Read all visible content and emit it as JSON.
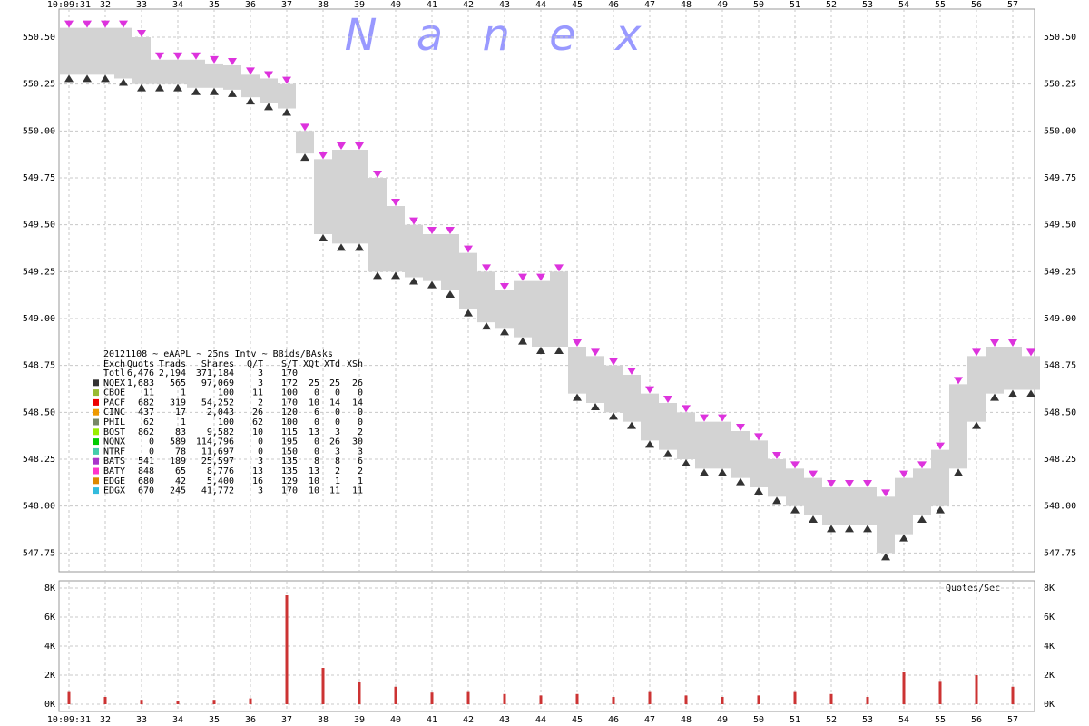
{
  "chart_data": [
    {
      "type": "band",
      "annotation": "N a n e x",
      "x": [
        31,
        31.5,
        32,
        32.5,
        33,
        33.5,
        34,
        34.5,
        35,
        35.5,
        36,
        36.5,
        37,
        37.5,
        38,
        38.5,
        39,
        39.5,
        40,
        40.5,
        41,
        41.5,
        42,
        42.5,
        43,
        43.5,
        44,
        44.5,
        45,
        45.5,
        46,
        46.5,
        47,
        47.5,
        48,
        48.5,
        49,
        49.5,
        50,
        50.5,
        51,
        51.5,
        52,
        52.5,
        53,
        53.5,
        54,
        54.5,
        55,
        55.5,
        56,
        56.5,
        57,
        57.5
      ],
      "series": [
        {
          "color": "#dd33dd",
          "values": [
            550.55,
            550.55,
            550.55,
            550.55,
            550.5,
            550.38,
            550.38,
            550.38,
            550.36,
            550.35,
            550.3,
            550.28,
            550.25,
            550.0,
            549.85,
            549.9,
            549.9,
            549.75,
            549.6,
            549.5,
            549.45,
            549.45,
            549.35,
            549.25,
            549.15,
            549.2,
            549.2,
            549.25,
            548.85,
            548.8,
            548.75,
            548.7,
            548.6,
            548.55,
            548.5,
            548.45,
            548.45,
            548.4,
            548.35,
            548.25,
            548.2,
            548.15,
            548.1,
            548.1,
            548.1,
            548.05,
            548.15,
            548.2,
            548.3,
            548.65,
            548.8,
            548.85,
            548.85,
            548.8
          ]
        },
        {
          "color": "#333333",
          "values": [
            550.3,
            550.3,
            550.3,
            550.28,
            550.25,
            550.25,
            550.25,
            550.23,
            550.23,
            550.22,
            550.18,
            550.15,
            550.12,
            549.88,
            549.45,
            549.4,
            549.4,
            549.25,
            549.25,
            549.22,
            549.2,
            549.15,
            549.05,
            548.98,
            548.95,
            548.9,
            548.85,
            548.85,
            548.6,
            548.55,
            548.5,
            548.45,
            548.35,
            548.3,
            548.25,
            548.2,
            548.2,
            548.15,
            548.1,
            548.05,
            548.0,
            547.95,
            547.9,
            547.9,
            547.9,
            547.75,
            547.85,
            547.95,
            548.0,
            548.2,
            548.45,
            548.6,
            548.62,
            548.62
          ]
        }
      ],
      "band_color": "#d3d3d3",
      "xlim": [
        30.725,
        57.6
      ],
      "xticks": [
        {
          "value": 31,
          "label": "10:09:31"
        },
        32,
        33,
        34,
        35,
        36,
        37,
        38,
        39,
        40,
        41,
        42,
        43,
        44,
        45,
        46,
        47,
        48,
        49,
        50,
        51,
        52,
        53,
        54,
        55,
        56,
        57
      ],
      "ylim": [
        547.65,
        550.65
      ],
      "yticks": [
        {
          "value": 547.75,
          "label": "547.75"
        },
        {
          "value": 548,
          "label": "548.00"
        },
        {
          "value": 548.25,
          "label": "548.25"
        },
        {
          "value": 548.5,
          "label": "548.50"
        },
        {
          "value": 548.75,
          "label": "548.75"
        },
        {
          "value": 549,
          "label": "549.00"
        },
        {
          "value": 549.25,
          "label": "549.25"
        },
        {
          "value": 549.5,
          "label": "549.50"
        },
        {
          "value": 549.75,
          "label": "549.75"
        },
        {
          "value": 550,
          "label": "550.00"
        },
        {
          "value": 550.25,
          "label": "550.25"
        },
        {
          "value": 550.5,
          "label": "550.50"
        }
      ],
      "grid": true,
      "stats_table": {
        "title": "20121108 ~ eAAPL ~ 25ms Intv ~ BBids/BAsks",
        "header": [
          "Exch",
          "Quots",
          "Trads",
          "Shares",
          "Q/T",
          "S/T",
          "XQt",
          "XTd",
          "XSh"
        ],
        "rows": [
          [
            "Totl",
            "6,476",
            "2,194",
            "371,184",
            "3",
            "170"
          ],
          [
            "NQEX",
            "1,683",
            "565",
            "97,069",
            "3",
            "172",
            "25",
            "25",
            "26"
          ],
          [
            "CBOE",
            "11",
            "1",
            "100",
            "11",
            "100",
            "0",
            "0",
            "0"
          ],
          [
            "PACF",
            "682",
            "319",
            "54,252",
            "2",
            "170",
            "10",
            "14",
            "14"
          ],
          [
            "CINC",
            "437",
            "17",
            "2,043",
            "26",
            "120",
            "6",
            "0",
            "0"
          ],
          [
            "PHIL",
            "62",
            "1",
            "100",
            "62",
            "100",
            "0",
            "0",
            "0"
          ],
          [
            "BOST",
            "862",
            "83",
            "9,582",
            "10",
            "115",
            "13",
            "3",
            "2"
          ],
          [
            "NQNX",
            "0",
            "589",
            "114,796",
            "0",
            "195",
            "0",
            "26",
            "30"
          ],
          [
            "NTRF",
            "0",
            "78",
            "11,697",
            "0",
            "150",
            "0",
            "3",
            "3"
          ],
          [
            "BATS",
            "541",
            "189",
            "25,597",
            "3",
            "135",
            "8",
            "8",
            "6"
          ],
          [
            "BATY",
            "848",
            "65",
            "8,776",
            "13",
            "135",
            "13",
            "2",
            "2"
          ],
          [
            "EDGE",
            "680",
            "42",
            "5,400",
            "16",
            "129",
            "10",
            "1",
            "1"
          ],
          [
            "EDGX",
            "670",
            "245",
            "41,772",
            "3",
            "170",
            "10",
            "11",
            "11"
          ]
        ],
        "row_colors": [
          null,
          "#333333",
          "#99bb33",
          "#ee0000",
          "#ee9900",
          "#778866",
          "#99ee00",
          "#00cc00",
          "#44ccaa",
          "#aa33cc",
          "#ff33cc",
          "#dd8800",
          "#33bbdd"
        ]
      }
    },
    {
      "type": "bar",
      "title": "Quotes/Sec",
      "color": "#cc3333",
      "x": [
        31,
        32,
        33,
        34,
        35,
        36,
        37,
        38,
        39,
        40,
        41,
        42,
        43,
        44,
        45,
        46,
        47,
        48,
        49,
        50,
        51,
        52,
        53,
        54,
        55,
        56,
        57
      ],
      "values": [
        900,
        500,
        300,
        200,
        300,
        400,
        7500,
        2500,
        1500,
        1200,
        800,
        900,
        700,
        600,
        700,
        500,
        900,
        600,
        500,
        600,
        900,
        700,
        500,
        2200,
        1600,
        2000,
        1200
      ],
      "ylim": [
        -500,
        8500
      ],
      "yticks": [
        {
          "value": 0,
          "label": "0K"
        },
        {
          "value": 2000,
          "label": "2K"
        },
        {
          "value": 4000,
          "label": "4K"
        },
        {
          "value": 6000,
          "label": "6K"
        },
        {
          "value": 8000,
          "label": "8K"
        }
      ],
      "grid": true
    }
  ]
}
